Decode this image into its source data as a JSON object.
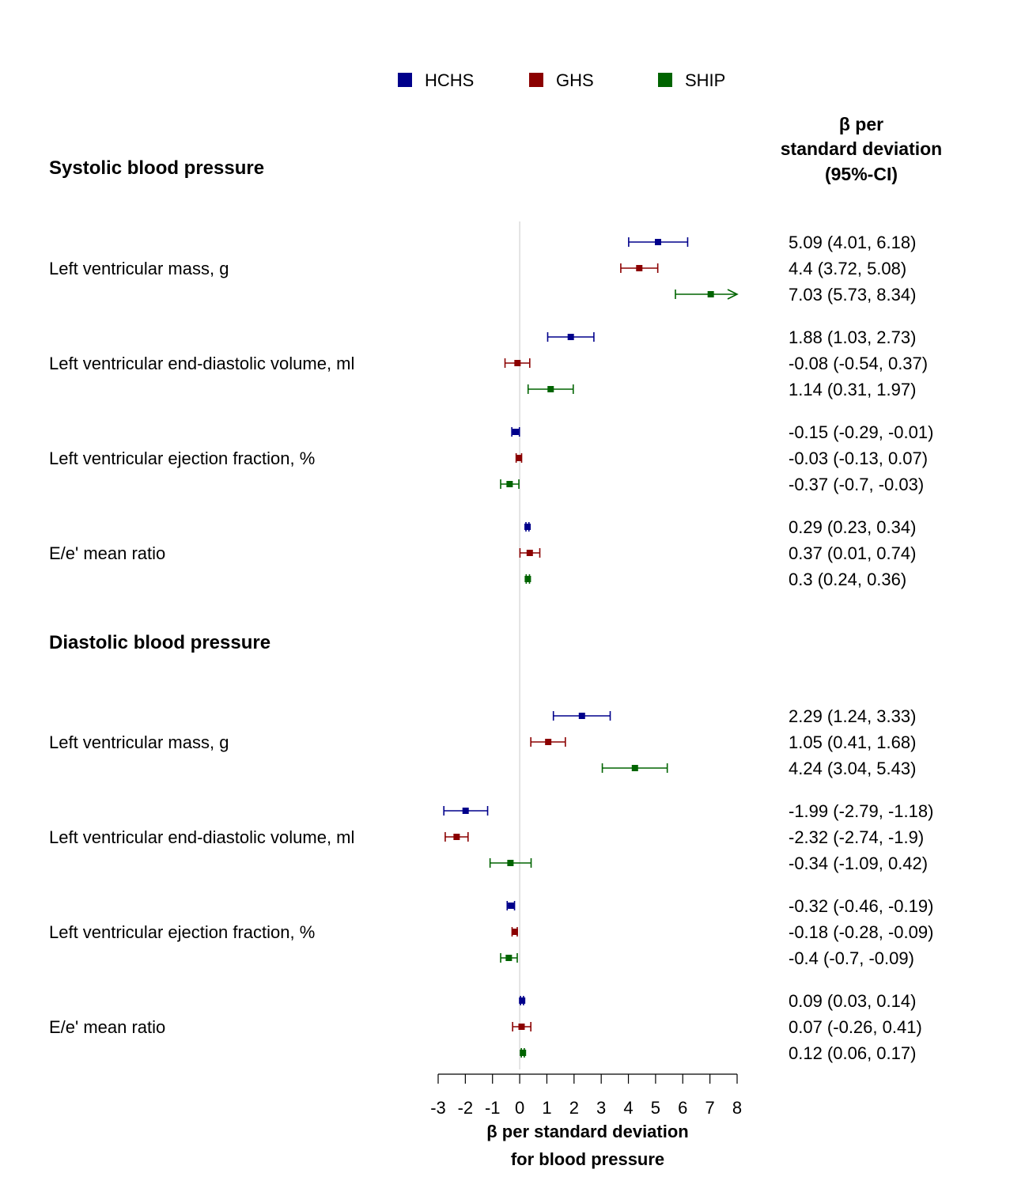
{
  "chart_data": {
    "type": "forest",
    "legend": [
      {
        "name": "HCHS",
        "color": "#00008b"
      },
      {
        "name": "GHS",
        "color": "#8b0000"
      },
      {
        "name": "SHIP",
        "color": "#006400"
      }
    ],
    "column_header": [
      "β per",
      "standard deviation",
      "(95%-CI)"
    ],
    "xlabel": [
      "β per standard deviation",
      "for blood pressure"
    ],
    "xlim": [
      -3,
      8
    ],
    "xticks": [
      "-3",
      "-2",
      "-1",
      "0",
      "1",
      "2",
      "3",
      "4",
      "5",
      "6",
      "7",
      "8"
    ],
    "sections": [
      {
        "title": "Systolic blood pressure",
        "groups": [
          {
            "label": "Left ventricular mass, g",
            "rows": [
              {
                "series": "HCHS",
                "est": 5.09,
                "lo": 4.01,
                "hi": 6.18,
                "text": "5.09 (4.01, 6.18)"
              },
              {
                "series": "GHS",
                "est": 4.4,
                "lo": 3.72,
                "hi": 5.08,
                "text": "4.4 (3.72, 5.08)"
              },
              {
                "series": "SHIP",
                "est": 7.03,
                "lo": 5.73,
                "hi": 8.34,
                "text": "7.03 (5.73, 8.34)"
              }
            ]
          },
          {
            "label": "Left ventricular end-diastolic volume, ml",
            "rows": [
              {
                "series": "HCHS",
                "est": 1.88,
                "lo": 1.03,
                "hi": 2.73,
                "text": "1.88 (1.03, 2.73)"
              },
              {
                "series": "GHS",
                "est": -0.08,
                "lo": -0.54,
                "hi": 0.37,
                "text": "-0.08 (-0.54, 0.37)"
              },
              {
                "series": "SHIP",
                "est": 1.14,
                "lo": 0.31,
                "hi": 1.97,
                "text": "1.14 (0.31, 1.97)"
              }
            ]
          },
          {
            "label": "Left ventricular ejection fraction, %",
            "rows": [
              {
                "series": "HCHS",
                "est": -0.15,
                "lo": -0.29,
                "hi": -0.01,
                "text": "-0.15 (-0.29, -0.01)"
              },
              {
                "series": "GHS",
                "est": -0.03,
                "lo": -0.13,
                "hi": 0.07,
                "text": "-0.03 (-0.13, 0.07)"
              },
              {
                "series": "SHIP",
                "est": -0.37,
                "lo": -0.7,
                "hi": -0.03,
                "text": "-0.37 (-0.7, -0.03)"
              }
            ]
          },
          {
            "label": "E/e' mean ratio",
            "rows": [
              {
                "series": "HCHS",
                "est": 0.29,
                "lo": 0.23,
                "hi": 0.34,
                "text": "0.29 (0.23, 0.34)"
              },
              {
                "series": "GHS",
                "est": 0.37,
                "lo": 0.01,
                "hi": 0.74,
                "text": "0.37 (0.01, 0.74)"
              },
              {
                "series": "SHIP",
                "est": 0.3,
                "lo": 0.24,
                "hi": 0.36,
                "text": "0.3 (0.24, 0.36)"
              }
            ]
          }
        ]
      },
      {
        "title": "Diastolic blood pressure",
        "groups": [
          {
            "label": "Left ventricular mass, g",
            "rows": [
              {
                "series": "HCHS",
                "est": 2.29,
                "lo": 1.24,
                "hi": 3.33,
                "text": "2.29 (1.24, 3.33)"
              },
              {
                "series": "GHS",
                "est": 1.05,
                "lo": 0.41,
                "hi": 1.68,
                "text": "1.05 (0.41, 1.68)"
              },
              {
                "series": "SHIP",
                "est": 4.24,
                "lo": 3.04,
                "hi": 5.43,
                "text": "4.24 (3.04, 5.43)"
              }
            ]
          },
          {
            "label": "Left ventricular end-diastolic volume, ml",
            "rows": [
              {
                "series": "HCHS",
                "est": -1.99,
                "lo": -2.79,
                "hi": -1.18,
                "text": "-1.99 (-2.79, -1.18)"
              },
              {
                "series": "GHS",
                "est": -2.32,
                "lo": -2.74,
                "hi": -1.9,
                "text": "-2.32 (-2.74, -1.9)"
              },
              {
                "series": "SHIP",
                "est": -0.34,
                "lo": -1.09,
                "hi": 0.42,
                "text": "-0.34 (-1.09, 0.42)"
              }
            ]
          },
          {
            "label": "Left ventricular ejection fraction, %",
            "rows": [
              {
                "series": "HCHS",
                "est": -0.32,
                "lo": -0.46,
                "hi": -0.19,
                "text": "-0.32 (-0.46, -0.19)"
              },
              {
                "series": "GHS",
                "est": -0.18,
                "lo": -0.28,
                "hi": -0.09,
                "text": "-0.18 (-0.28, -0.09)"
              },
              {
                "series": "SHIP",
                "est": -0.4,
                "lo": -0.7,
                "hi": -0.09,
                "text": "-0.4 (-0.7, -0.09)"
              }
            ]
          },
          {
            "label": "E/e' mean ratio",
            "rows": [
              {
                "series": "HCHS",
                "est": 0.09,
                "lo": 0.03,
                "hi": 0.14,
                "text": "0.09 (0.03, 0.14)"
              },
              {
                "series": "GHS",
                "est": 0.07,
                "lo": -0.26,
                "hi": 0.41,
                "text": "0.07 (-0.26, 0.41)"
              },
              {
                "series": "SHIP",
                "est": 0.12,
                "lo": 0.06,
                "hi": 0.17,
                "text": "0.12 (0.06, 0.17)"
              }
            ]
          }
        ]
      }
    ]
  }
}
